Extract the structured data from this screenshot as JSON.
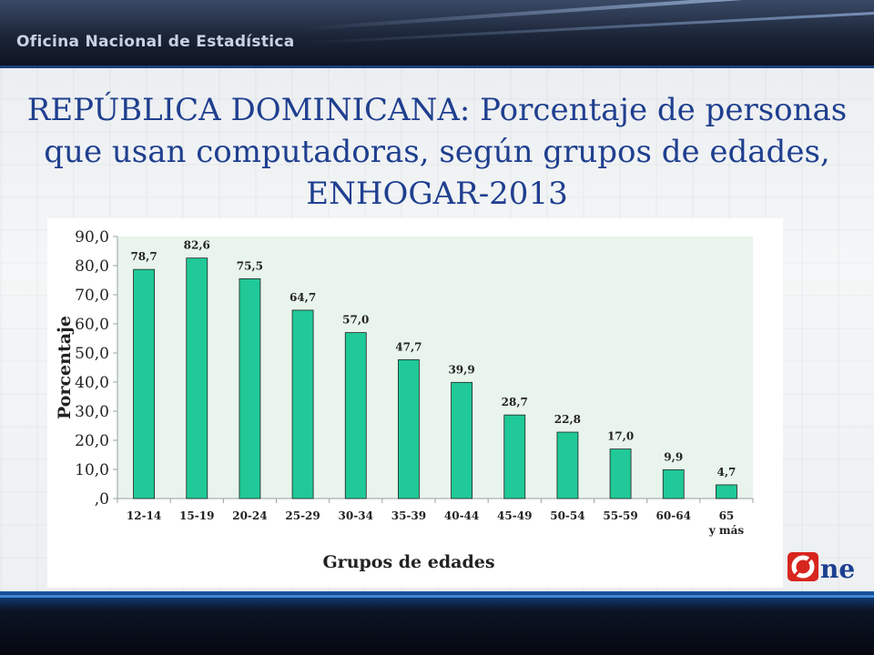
{
  "header": {
    "brand": "Oficina Nacional de Estadística"
  },
  "title_lines": [
    "REPÚBLICA DOMINICANA: Porcentaje de personas",
    "que usan computadoras, según grupos de edades,",
    "ENHOGAR-2013"
  ],
  "logo": {
    "text": "One",
    "icon": "one-logo"
  },
  "colors": {
    "bar": "#20c997",
    "plot_bg": "#e8f4ec",
    "title": "#1f3f8f"
  },
  "chart_data": {
    "type": "bar",
    "categories": [
      "12-14",
      "15-19",
      "20-24",
      "25-29",
      "30-34",
      "35-39",
      "40-44",
      "45-49",
      "50-54",
      "55-59",
      "60-64",
      "65 y más"
    ],
    "values": [
      78.7,
      82.6,
      75.5,
      64.7,
      57.0,
      47.7,
      39.9,
      28.7,
      22.8,
      17.0,
      9.9,
      4.7
    ],
    "value_labels": [
      "78,7",
      "82,6",
      "75,5",
      "64,7",
      "57,0",
      "47,7",
      "39,9",
      "28,7",
      "22,8",
      "17,0",
      "9,9",
      "4,7"
    ],
    "xlabel": "Grupos de edades",
    "ylabel": "Porcentaje",
    "ylim": [
      0,
      90
    ],
    "yticks": [
      ",0",
      "10,0",
      "20,0",
      "30,0",
      "40,0",
      "50,0",
      "60,0",
      "70,0",
      "80,0",
      "90,0"
    ],
    "grid": false,
    "legend": "none"
  }
}
